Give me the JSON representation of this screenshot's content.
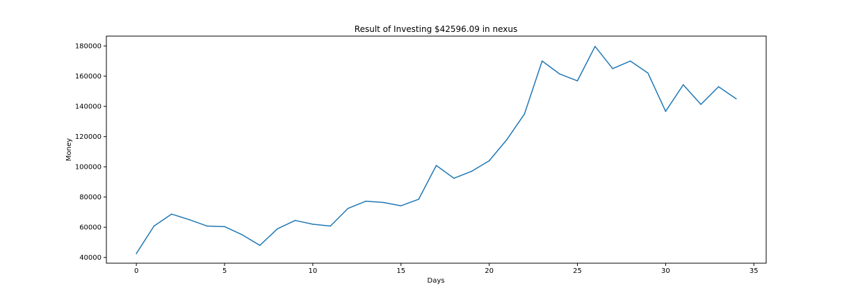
{
  "chart_data": {
    "type": "line",
    "title": "Result of Investing $42596.09 in nexus",
    "xlabel": "Days",
    "ylabel": "Money",
    "xlim": [
      -1.7,
      35.7
    ],
    "ylim": [
      36200,
      186500
    ],
    "x_ticks": [
      0,
      5,
      10,
      15,
      20,
      25,
      30,
      35
    ],
    "y_ticks": [
      40000,
      60000,
      80000,
      100000,
      120000,
      140000,
      160000,
      180000
    ],
    "grid": false,
    "legend": "none",
    "series": [
      {
        "color": "#1f77b4",
        "x": [
          0,
          1,
          2,
          3,
          4,
          5,
          6,
          7,
          8,
          9,
          10,
          11,
          12,
          13,
          14,
          15,
          16,
          17,
          18,
          19,
          20,
          21,
          22,
          23,
          24,
          25,
          26,
          27,
          28,
          29,
          30,
          31,
          32,
          33,
          34
        ],
        "values": [
          42596,
          60800,
          68700,
          65000,
          60800,
          60400,
          55000,
          48000,
          59000,
          64500,
          62000,
          60800,
          72500,
          77200,
          76400,
          74200,
          78500,
          100900,
          92400,
          97000,
          104000,
          118000,
          135000,
          170000,
          161400,
          156900,
          179700,
          165000,
          170000,
          162000,
          136700,
          154300,
          141300,
          153000,
          145000
        ]
      }
    ]
  }
}
